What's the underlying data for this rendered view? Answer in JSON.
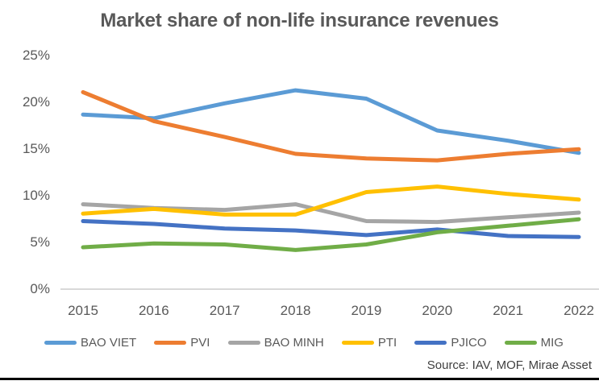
{
  "title": "Market share of non-life insurance revenues",
  "source": "Source: IAV, MOF, Mirae Asset",
  "chart_data": {
    "type": "line",
    "x": [
      2015,
      2016,
      2017,
      2018,
      2019,
      2020,
      2021,
      2022
    ],
    "series": [
      {
        "name": "BAO VIET",
        "color": "#5B9BD5",
        "values": [
          18.6,
          18.2,
          19.8,
          21.2,
          20.3,
          16.9,
          15.8,
          14.5
        ]
      },
      {
        "name": "PVI",
        "color": "#ED7D31",
        "values": [
          21.0,
          17.9,
          16.2,
          14.4,
          13.9,
          13.7,
          14.4,
          14.9
        ]
      },
      {
        "name": "BAO MINH",
        "color": "#A5A5A5",
        "values": [
          9.0,
          8.6,
          8.4,
          9.0,
          7.2,
          7.1,
          7.6,
          8.1
        ]
      },
      {
        "name": "PTI",
        "color": "#FFC000",
        "values": [
          8.0,
          8.5,
          7.9,
          7.9,
          10.3,
          10.9,
          10.1,
          9.5
        ]
      },
      {
        "name": "PJICO",
        "color": "#4472C4",
        "values": [
          7.2,
          6.9,
          6.4,
          6.2,
          5.7,
          6.3,
          5.6,
          5.5
        ]
      },
      {
        "name": "MIG",
        "color": "#70AD47",
        "values": [
          4.4,
          4.8,
          4.7,
          4.1,
          4.7,
          6.0,
          6.7,
          7.4
        ]
      }
    ],
    "title": "Market share of non-life insurance revenues",
    "xlabel": "",
    "ylabel": "",
    "ylim": [
      0,
      25
    ],
    "ytick_step": 5,
    "yticks": [
      "0%",
      "5%",
      "10%",
      "15%",
      "20%",
      "25%"
    ],
    "grid": false,
    "legend_position": "bottom",
    "axis_color": "#D9D9D9",
    "text_color": "#595959",
    "line_width": 5
  }
}
